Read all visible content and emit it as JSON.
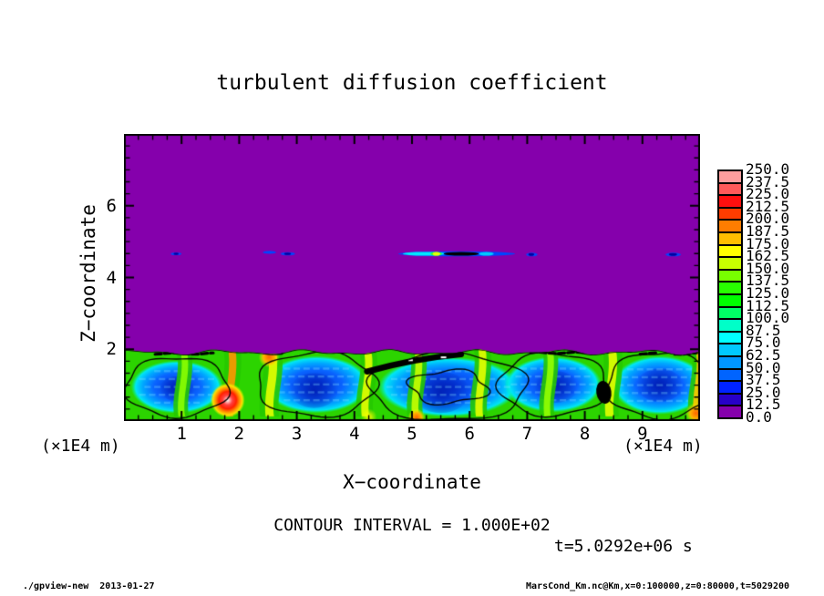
{
  "header": {
    "title": "turbulent diffusion coefficient"
  },
  "plot": {
    "xlabel": "X−coordinate",
    "ylabel": "Z−coordinate",
    "x_factor_label": "(×1E4 m)",
    "y_factor_label": "(×1E4 m)",
    "contour_note": "CONTOUR INTERVAL = 1.000E+02",
    "time_label": "t=5.0292e+06 s"
  },
  "footer": {
    "left": "./gpview-new  2013-01-27",
    "right": "MarsCond_Km.nc@Km,x=0:100000,z=0:80000,t=5029200"
  },
  "chart_data": {
    "type": "heatmap",
    "title": "turbulent diffusion coefficient",
    "xlabel": "X-coordinate (x1E4 m)",
    "ylabel": "Z-coordinate (x1E4 m)",
    "xlim": [
      0,
      10
    ],
    "ylim": [
      0,
      8
    ],
    "xticks": [
      1,
      2,
      3,
      4,
      5,
      6,
      7,
      8,
      9
    ],
    "yticks": [
      2,
      4,
      6
    ],
    "x_minor_step": 0.25,
    "y_minor_step": 0.3333,
    "contour_interval": 100.0,
    "time_label": "t=5.0292e+06 s",
    "background_color": "#8500AC",
    "background_value_range": [
      0,
      12.5
    ],
    "colorbar": {
      "levels": [
        0,
        12.5,
        25,
        37.5,
        50,
        62.5,
        75,
        87.5,
        100,
        112.5,
        125,
        137.5,
        150,
        162.5,
        175,
        187.5,
        200,
        212.5,
        225,
        237.5,
        250
      ],
      "labels_top_to_bottom": [
        "250.0",
        "237.5",
        "225.0",
        "212.5",
        "200.0",
        "187.5",
        "175.0",
        "162.5",
        "150.0",
        "137.5",
        "125.0",
        "112.5",
        "100.0",
        "87.5",
        "75.0",
        "62.5",
        "50.0",
        "37.5",
        "25.0",
        "12.5",
        "0.0"
      ],
      "colors_bottom_to_top": [
        "#8500AC",
        "#2800C8",
        "#0023FF",
        "#0064FF",
        "#0096FF",
        "#00C8FF",
        "#00FFFF",
        "#00FFC8",
        "#00FF64",
        "#00FF00",
        "#28FF00",
        "#78FF00",
        "#C8FF00",
        "#FFFF00",
        "#FFBE00",
        "#FF7D00",
        "#FF3C00",
        "#FF0F0F",
        "#FF5A5A",
        "#FF9E9E"
      ]
    },
    "boundary_layer": {
      "top_z": 1.92,
      "base_color": "#2CD400",
      "cells": [
        {
          "cx": 0.92,
          "cz": 0.95,
          "rx": 0.8,
          "rz": 0.74
        },
        {
          "cx": 3.34,
          "cz": 1.02,
          "rx": 0.92,
          "rz": 0.8
        },
        {
          "cx": 5.63,
          "cz": 0.95,
          "rx": 1.22,
          "rz": 0.84
        },
        {
          "cx": 7.45,
          "cz": 1.02,
          "rx": 0.84,
          "rz": 0.78
        },
        {
          "cx": 9.3,
          "cz": 1.0,
          "rx": 0.82,
          "rz": 0.82
        }
      ],
      "cores": [
        {
          "cx": 0.92,
          "cz": 0.9,
          "r": 0.3
        },
        {
          "cx": 3.3,
          "cz": 0.85,
          "r": 0.42
        },
        {
          "cx": 5.5,
          "cz": 0.8,
          "r": 0.5
        },
        {
          "cx": 7.5,
          "cz": 0.95,
          "r": 0.38
        },
        {
          "cx": 9.3,
          "cz": 1.0,
          "r": 0.4
        }
      ],
      "plumes": [
        {
          "x": 1.02,
          "w": 0.14,
          "core": "#8CFF00"
        },
        {
          "x": 1.85,
          "w": 0.16,
          "core": "#FF9600"
        },
        {
          "x": 2.55,
          "w": 0.18,
          "core": "#E6FF00"
        },
        {
          "x": 4.21,
          "w": 0.16,
          "core": "#E6FF00"
        },
        {
          "x": 5.08,
          "w": 0.15,
          "core": "#C8FF00"
        },
        {
          "x": 6.19,
          "w": 0.16,
          "core": "#E6FF00"
        },
        {
          "x": 7.37,
          "w": 0.14,
          "core": "#96FF00"
        },
        {
          "x": 8.45,
          "w": 0.18,
          "core": "#E6FF00"
        },
        {
          "x": 9.97,
          "w": 0.16,
          "core": "#FFC800"
        }
      ],
      "hot_spots": [
        {
          "x": 1.8,
          "z": 0.58,
          "r": 0.3,
          "type": "white-core"
        },
        {
          "x": 2.52,
          "z": 1.78,
          "r": 0.18,
          "type": "orange"
        },
        {
          "x": 5.08,
          "z": 0.1,
          "r": 0.15,
          "type": "orange"
        },
        {
          "x": 9.93,
          "z": 0.22,
          "r": 0.18,
          "type": "orange"
        },
        {
          "x": 4.25,
          "z": 0.12,
          "r": 0.14,
          "type": "yellow"
        }
      ],
      "black_maxima": [
        {
          "kind": "streak",
          "x1": 4.22,
          "z1": 1.38,
          "x2": 5.85,
          "z2": 1.86,
          "w": 0.17
        },
        {
          "kind": "blob",
          "x": 8.33,
          "z": 0.8,
          "rx": 0.13,
          "rz": 0.32
        },
        {
          "kind": "dash",
          "x1": 0.54,
          "x2": 1.55,
          "z": 1.88
        },
        {
          "kind": "dash",
          "x1": 2.47,
          "x2": 2.78,
          "z": 1.9
        },
        {
          "kind": "dash",
          "x1": 7.06,
          "x2": 8.01,
          "z": 1.9
        },
        {
          "kind": "dash",
          "x1": 8.96,
          "x2": 9.24,
          "z": 1.88
        },
        {
          "kind": "dash",
          "x1": 9.56,
          "x2": 9.94,
          "z": 1.88
        }
      ]
    },
    "detached_streaks": [
      {
        "x1": 4.76,
        "x2": 6.79,
        "z": 4.66,
        "h": 0.14,
        "color": "#0046FF",
        "segments": [
          {
            "x1": 4.84,
            "x2": 5.59,
            "color": "#00E8FF"
          },
          {
            "x1": 5.32,
            "x2": 5.52,
            "color": "#30FF30"
          },
          {
            "x1": 5.36,
            "x2": 5.49,
            "color": "#E8FF00"
          },
          {
            "x1": 5.55,
            "x2": 6.16,
            "color": "#000000"
          },
          {
            "x1": 6.16,
            "x2": 6.42,
            "color": "#00C8FF"
          }
        ]
      },
      {
        "x1": 6.98,
        "x2": 7.18,
        "z": 4.64,
        "h": 0.1,
        "color": "#0046FF",
        "segments": [
          {
            "x1": 7.02,
            "x2": 7.12,
            "color": "#0000A0"
          }
        ]
      },
      {
        "x1": 0.81,
        "x2": 1.0,
        "z": 4.66,
        "h": 0.08,
        "color": "#0046FF",
        "segments": [
          {
            "x1": 0.86,
            "x2": 0.95,
            "color": "#0000A0"
          }
        ]
      },
      {
        "x1": 2.41,
        "x2": 2.64,
        "z": 4.7,
        "h": 0.08,
        "color": "#0046FF",
        "segments": []
      },
      {
        "x1": 2.72,
        "x2": 2.97,
        "z": 4.66,
        "h": 0.09,
        "color": "#0046FF",
        "segments": [
          {
            "x1": 2.78,
            "x2": 2.9,
            "color": "#0000A0"
          }
        ]
      },
      {
        "x1": 9.4,
        "x2": 9.67,
        "z": 4.64,
        "h": 0.1,
        "color": "#0046FF",
        "segments": [
          {
            "x1": 9.46,
            "x2": 9.6,
            "color": "#0000A0"
          }
        ]
      }
    ]
  }
}
